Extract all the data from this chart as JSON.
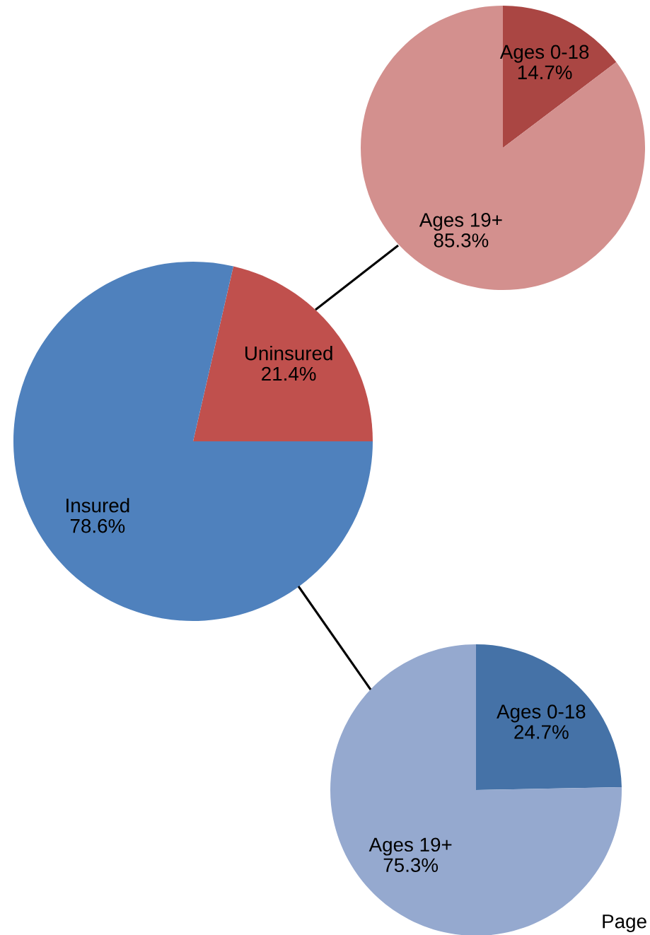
{
  "chart_data": [
    {
      "type": "pie",
      "categories": [
        "Ages 0-18",
        "Ages 19+"
      ],
      "values": [
        14.7,
        85.3
      ],
      "value_labels": [
        "14.7%",
        "85.3%"
      ],
      "colors": [
        "#aa4643",
        "#d3908e"
      ]
    },
    {
      "type": "pie",
      "categories": [
        "Uninsured",
        "Insured"
      ],
      "values": [
        21.4,
        78.6
      ],
      "value_labels": [
        "21.4%",
        "78.6%"
      ],
      "colors": [
        "#c0504d",
        "#4f81bd"
      ]
    },
    {
      "type": "pie",
      "categories": [
        "Ages 0-18",
        "Ages 19+"
      ],
      "values": [
        24.7,
        75.3
      ],
      "value_labels": [
        "24.7%",
        "75.3%"
      ],
      "colors": [
        "#4572a7",
        "#95a9cf"
      ],
      "annotations": [
        "Page"
      ]
    }
  ]
}
